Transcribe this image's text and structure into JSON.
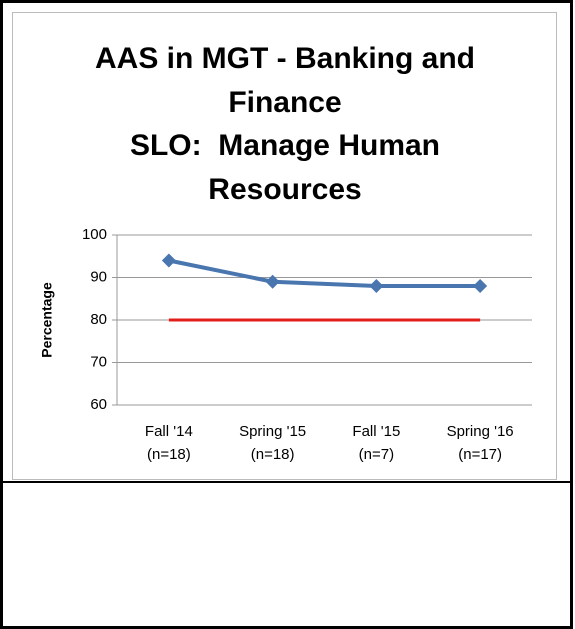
{
  "chart_data": {
    "type": "line",
    "title": [
      "AAS in MGT - Banking and Finance",
      "SLO:  Manage Human Resources"
    ],
    "ylabel": "Percentage",
    "categories": [
      "Fall '14 (n=18)",
      "Spring '15 (n=18)",
      "Fall '15 (n=7)",
      "Spring '16 (n=17)"
    ],
    "series": [
      {
        "color": "#4a76b0",
        "values": [
          94,
          89,
          88,
          88
        ],
        "marker": "diamond"
      },
      {
        "color": "#e31c1c",
        "values": [
          80,
          80,
          80,
          80
        ]
      }
    ],
    "ylim": [
      60,
      100
    ],
    "yticks": [
      60,
      70,
      80,
      90,
      100
    ],
    "grid": true
  }
}
